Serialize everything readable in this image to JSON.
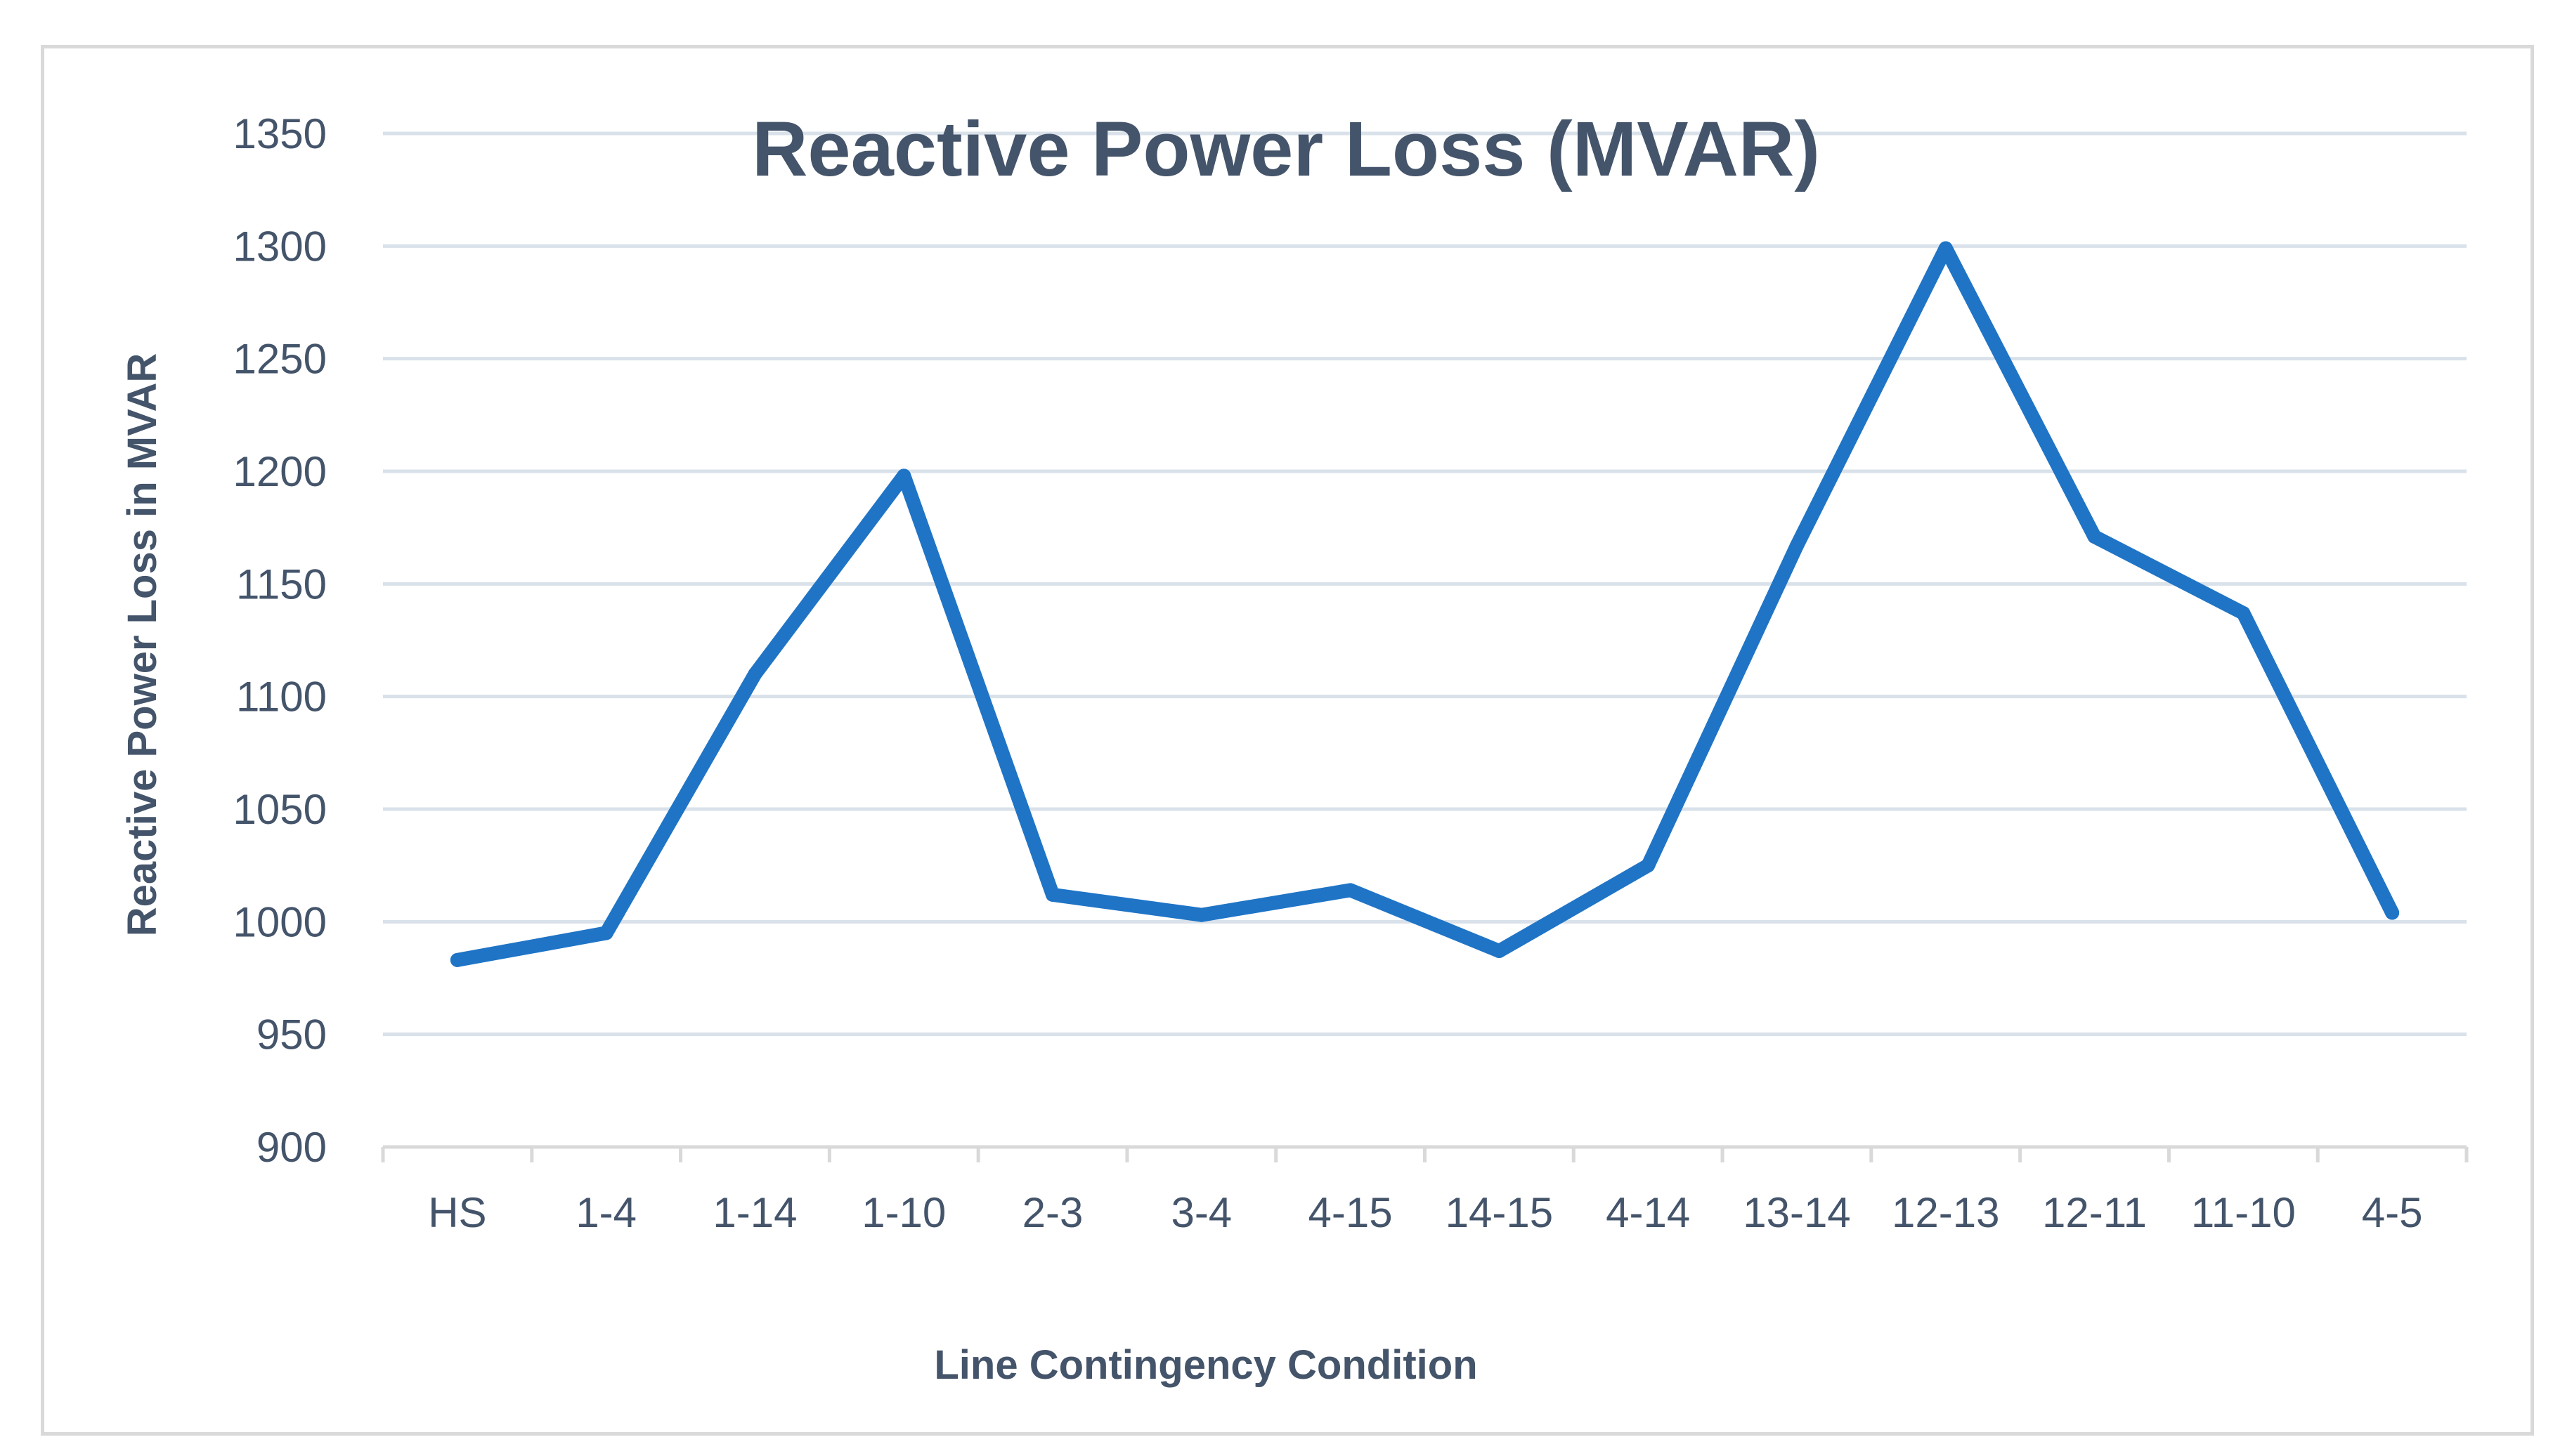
{
  "chart_data": {
    "type": "line",
    "title": "Reactive Power Loss (MVAR)",
    "xlabel": "Line Contingency Condition",
    "ylabel": "Reactive Power Loss in MVAR",
    "categories": [
      "HS",
      "1-4",
      "1-14",
      "1-10",
      "2-3",
      "3-4",
      "4-15",
      "14-15",
      "4-14",
      "13-14",
      "12-13",
      "12-11",
      "11-10",
      "4-5"
    ],
    "series": [
      {
        "name": "Reactive Power Loss (MVAR)",
        "color": "#1f74c6",
        "values": [
          983,
          995,
          1110,
          1198,
          1012,
          1003,
          1014,
          987,
          1025,
          1167,
          1299,
          1171,
          1137,
          1004
        ]
      }
    ],
    "ylim": [
      900,
      1350
    ],
    "yticks": [
      900,
      950,
      1000,
      1050,
      1100,
      1150,
      1200,
      1250,
      1300,
      1350
    ],
    "grid": true,
    "legend": "none"
  }
}
